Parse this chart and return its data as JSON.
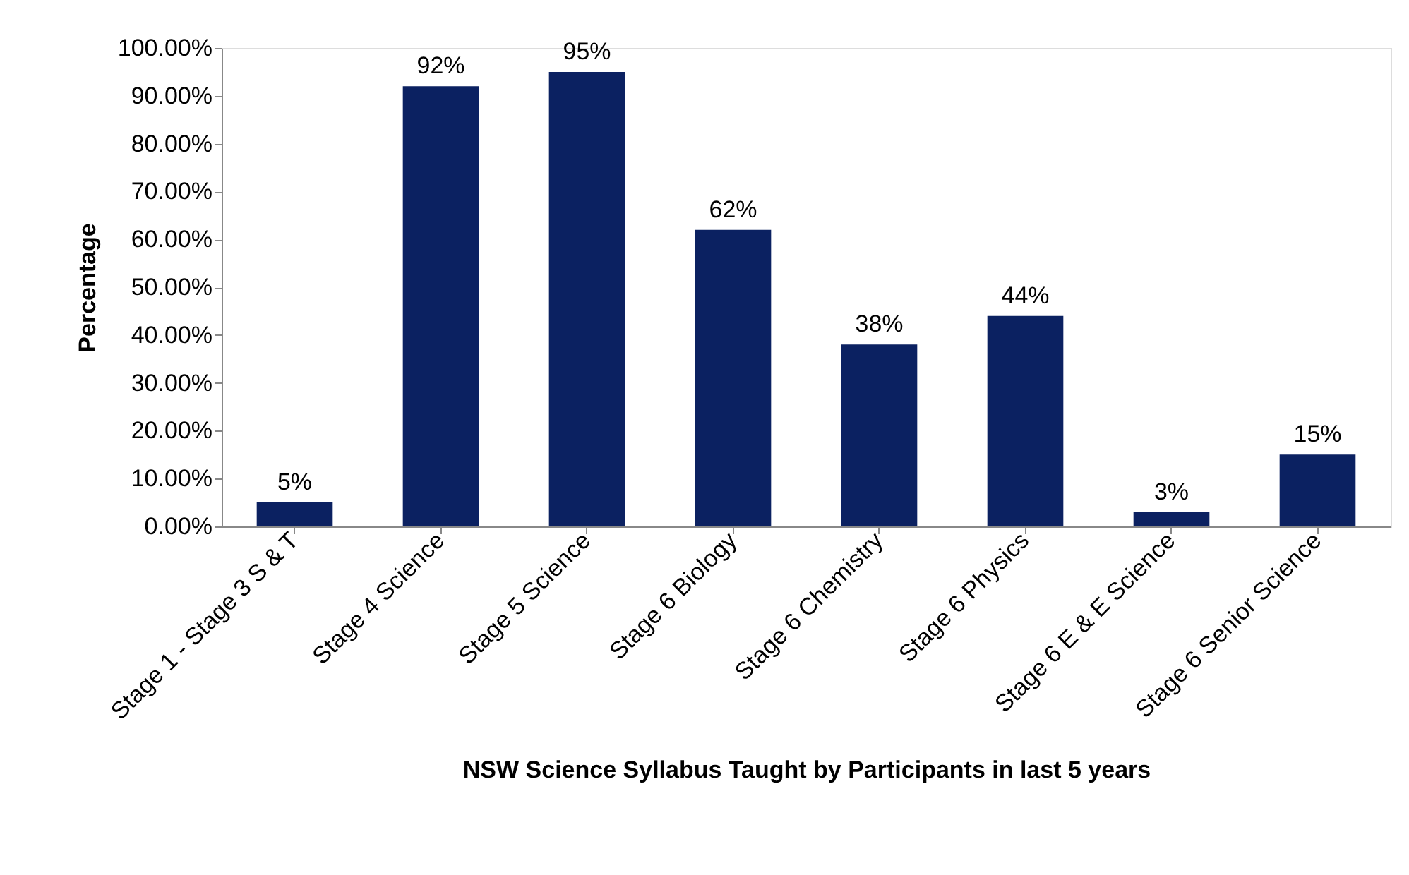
{
  "chart_data": {
    "type": "bar",
    "xlabel": "NSW Science Syllabus Taught by Participants in last 5 years",
    "ylabel": "Percentage",
    "categories": [
      "Stage 1 - Stage 3 S & T",
      "Stage 4 Science",
      "Stage 5 Science",
      "Stage 6 Biology",
      "Stage 6 Chemistry",
      "Stage 6 Physics",
      "Stage 6 E & E Science",
      "Stage 6 Senior Science"
    ],
    "values": [
      5,
      92,
      95,
      62,
      38,
      44,
      3,
      15
    ],
    "value_labels": [
      "5%",
      "92%",
      "95%",
      "62%",
      "38%",
      "44%",
      "3%",
      "15%"
    ],
    "color": "#0b2161",
    "ylim": [
      0,
      100
    ],
    "yticks": [
      {
        "value": 0,
        "label": "0.00%"
      },
      {
        "value": 10,
        "label": "10.00%"
      },
      {
        "value": 20,
        "label": "20.00%"
      },
      {
        "value": 30,
        "label": "30.00%"
      },
      {
        "value": 40,
        "label": "40.00%"
      },
      {
        "value": 50,
        "label": "50.00%"
      },
      {
        "value": 60,
        "label": "60.00%"
      },
      {
        "value": 70,
        "label": "70.00%"
      },
      {
        "value": 80,
        "label": "80.00%"
      },
      {
        "value": 90,
        "label": "90.00%"
      },
      {
        "value": 100,
        "label": "100.00%"
      }
    ],
    "grid": false
  }
}
